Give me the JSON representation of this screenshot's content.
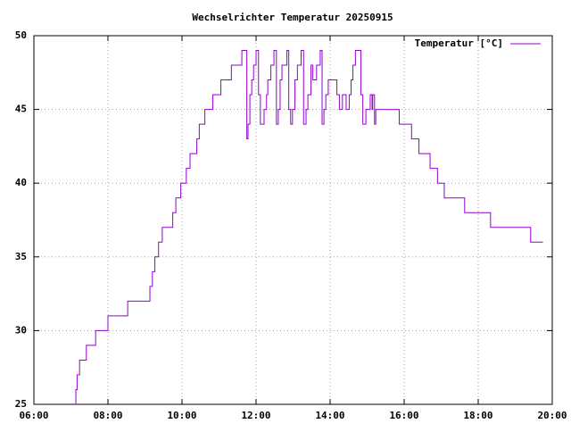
{
  "chart_data": {
    "type": "line",
    "title": "Wechselrichter Temperatur 20250915",
    "x": [
      "07:07",
      "07:08",
      "07:10",
      "07:14",
      "07:25",
      "07:40",
      "08:00",
      "08:32",
      "09:08",
      "09:12",
      "09:16",
      "09:22",
      "09:28",
      "09:45",
      "09:50",
      "09:58",
      "10:07",
      "10:13",
      "10:24",
      "10:28",
      "10:37",
      "10:50",
      "11:03",
      "11:20",
      "11:37",
      "11:45",
      "11:47",
      "11:50",
      "11:53",
      "11:56",
      "12:00",
      "12:04",
      "12:07",
      "12:13",
      "12:17",
      "12:19",
      "12:24",
      "12:29",
      "12:33",
      "12:36",
      "12:39",
      "12:42",
      "12:50",
      "12:53",
      "12:56",
      "12:59",
      "13:03",
      "13:07",
      "13:13",
      "13:17",
      "13:21",
      "13:24",
      "13:29",
      "13:32",
      "13:36",
      "13:38",
      "13:44",
      "13:47",
      "13:50",
      "13:53",
      "13:57",
      "14:11",
      "14:15",
      "14:20",
      "14:26",
      "14:31",
      "14:34",
      "14:37",
      "14:41",
      "14:50",
      "14:53",
      "14:58",
      "15:05",
      "15:08",
      "15:09",
      "15:12",
      "15:14",
      "15:52",
      "16:12",
      "16:24",
      "16:42",
      "16:54",
      "17:05",
      "17:38",
      "18:20",
      "19:25",
      "19:45"
    ],
    "series": [
      {
        "name": "Temperatur [°C]",
        "color": "#9400d3",
        "values": [
          25,
          26,
          27,
          28,
          29,
          30,
          31,
          32,
          33,
          34,
          35,
          36,
          37,
          38,
          39,
          40,
          41,
          42,
          43,
          44,
          45,
          46,
          47,
          48,
          49,
          43,
          44,
          46,
          47,
          48,
          49,
          46,
          44,
          45,
          46,
          47,
          48,
          49,
          44,
          45,
          47,
          48,
          49,
          45,
          44,
          45,
          47,
          48,
          49,
          44,
          45,
          46,
          48,
          47,
          47,
          48,
          49,
          44,
          45,
          46,
          47,
          46,
          45,
          46,
          45,
          46,
          47,
          48,
          49,
          46,
          44,
          45,
          46,
          45,
          46,
          44,
          45,
          44,
          43,
          42,
          41,
          40,
          39,
          38,
          37,
          36,
          36
        ]
      }
    ],
    "xlim": [
      "06:00",
      "20:00"
    ],
    "xticks": [
      "06:00",
      "08:00",
      "10:00",
      "12:00",
      "14:00",
      "16:00",
      "18:00",
      "20:00"
    ],
    "ylim": [
      25,
      50
    ],
    "yticks": [
      25,
      30,
      35,
      40,
      45,
      50
    ],
    "grid": true,
    "legend": "top-right"
  }
}
